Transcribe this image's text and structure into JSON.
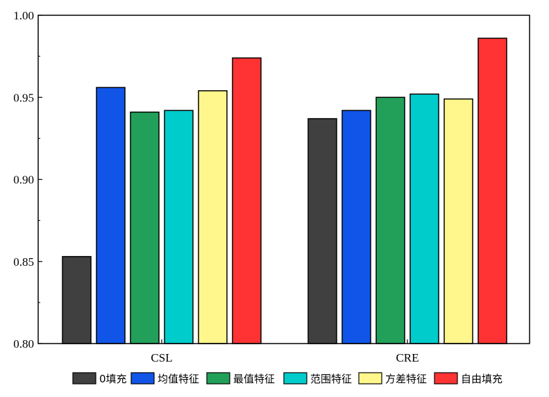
{
  "chart_data": {
    "type": "bar",
    "title": "",
    "xlabel": "",
    "ylabel": "",
    "categories": [
      "CSL",
      "CRE"
    ],
    "ylim": [
      0.8,
      1.0
    ],
    "yticks": [
      "0.80",
      "0.85",
      "0.90",
      "0.95",
      "1.00"
    ],
    "grid": false,
    "legend_position": "bottom",
    "series": [
      {
        "name": "0填充",
        "color": "#404040",
        "values": [
          0.853,
          0.937
        ]
      },
      {
        "name": "均值特征",
        "color": "#1155e8",
        "values": [
          0.956,
          0.942
        ]
      },
      {
        "name": "最值特征",
        "color": "#22a05a",
        "values": [
          0.941,
          0.95
        ]
      },
      {
        "name": "范围特征",
        "color": "#00cccc",
        "values": [
          0.942,
          0.952
        ]
      },
      {
        "name": "方差特征",
        "color": "#fff68c",
        "values": [
          0.954,
          0.949
        ]
      },
      {
        "name": "自由填充",
        "color": "#ff3333",
        "values": [
          0.974,
          0.986
        ]
      }
    ]
  }
}
